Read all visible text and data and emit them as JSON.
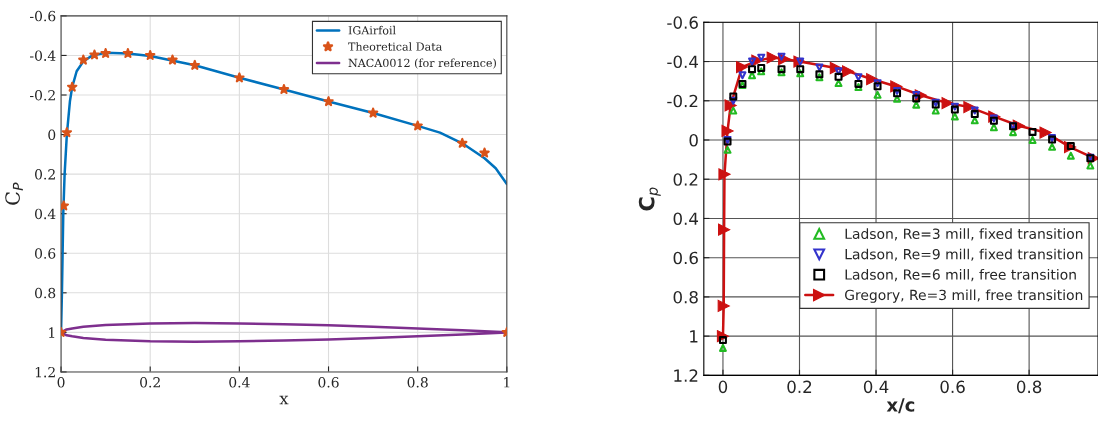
{
  "chart_data": [
    {
      "type": "line",
      "xlabel": "x",
      "ylabel": "C$_{P}$",
      "xlim": [
        0,
        1
      ],
      "ylim": [
        1.2,
        -0.6
      ],
      "xticks": [
        0,
        0.2,
        0.4,
        0.6,
        0.8,
        1
      ],
      "yticks": [
        -0.6,
        -0.4,
        -0.2,
        0,
        0.2,
        0.4,
        0.6,
        0.8,
        1,
        1.2
      ],
      "grid": true,
      "legend": "top right",
      "series": [
        {
          "name": "IGAirfoil",
          "color": "#0072bd",
          "x": [
            0,
            0.001,
            0.002,
            0.005,
            0.008,
            0.013,
            0.02,
            0.025,
            0.035,
            0.05,
            0.07,
            0.1,
            0.15,
            0.2,
            0.3,
            0.4,
            0.5,
            0.6,
            0.7,
            0.8,
            0.85,
            0.9,
            0.95,
            0.975,
            1
          ],
          "values": [
            1,
            0.9,
            0.8,
            0.4,
            0.2,
            0,
            -0.17,
            -0.24,
            -0.32,
            -0.37,
            -0.4,
            -0.413,
            -0.41,
            -0.397,
            -0.35,
            -0.287,
            -0.228,
            -0.167,
            -0.109,
            -0.044,
            -0.01,
            0.044,
            0.12,
            0.17,
            0.25
          ]
        },
        {
          "name": "Theoretical Data",
          "type": "scatter",
          "marker": "star",
          "color": "#d95319",
          "x": [
            0,
            0.006,
            0.013,
            0.025,
            0.05,
            0.075,
            0.1,
            0.15,
            0.2,
            0.25,
            0.3,
            0.4,
            0.5,
            0.6,
            0.7,
            0.8,
            0.9,
            0.95,
            1
          ],
          "values": [
            1,
            0.36,
            -0.01,
            -0.24,
            -0.377,
            -0.403,
            -0.41,
            -0.41,
            -0.4,
            -0.377,
            -0.35,
            -0.287,
            -0.228,
            -0.167,
            -0.109,
            -0.044,
            0.044,
            0.093,
            1
          ]
        },
        {
          "name": "NACA0012 (for reference)",
          "color": "#7e2f8e",
          "x": [
            1,
            0.9,
            0.8,
            0.7,
            0.6,
            0.5,
            0.4,
            0.3,
            0.2,
            0.1,
            0.05,
            0.025,
            0.0125,
            0,
            0.0125,
            0.025,
            0.05,
            0.1,
            0.2,
            0.3,
            0.4,
            0.5,
            0.6,
            0.7,
            0.8,
            0.9,
            1
          ],
          "values": [
            0.999,
            0.989,
            0.98,
            0.971,
            0.964,
            0.959,
            0.955,
            0.953,
            0.955,
            0.963,
            0.972,
            0.98,
            0.985,
            1,
            1.015,
            1.02,
            1.028,
            1.037,
            1.045,
            1.047,
            1.045,
            1.041,
            1.036,
            1.029,
            1.02,
            1.011,
            1.001
          ]
        }
      ]
    },
    {
      "type": "line",
      "xlabel": "x/c",
      "ylabel": "C$_{p}$",
      "xlim": [
        -0.05,
        0.98
      ],
      "ylim": [
        1.2,
        -0.6
      ],
      "xticks": [
        0,
        0.2,
        0.4,
        0.6,
        0.8
      ],
      "yticks": [
        -0.6,
        -0.4,
        -0.2,
        0,
        0.2,
        0.4,
        0.6,
        0.8,
        1,
        1.2
      ],
      "grid": true,
      "legend": "bottom right",
      "series": [
        {
          "name": "Ladson, Re=3 mill, fixed transition",
          "type": "scatter",
          "marker": "triangle",
          "color": "#22bb22",
          "x": [
            0,
            0.012,
            0.027,
            0.051,
            0.076,
            0.1,
            0.153,
            0.202,
            0.252,
            0.302,
            0.354,
            0.404,
            0.455,
            0.505,
            0.556,
            0.606,
            0.658,
            0.708,
            0.758,
            0.809,
            0.86,
            0.909,
            0.96
          ],
          "values": [
            1.06,
            0.05,
            -0.15,
            -0.28,
            -0.33,
            -0.35,
            -0.345,
            -0.34,
            -0.32,
            -0.29,
            -0.27,
            -0.23,
            -0.21,
            -0.18,
            -0.15,
            -0.12,
            -0.1,
            -0.065,
            -0.04,
            0,
            0.035,
            0.08,
            0.13
          ]
        },
        {
          "name": "Ladson, Re=9 mill, fixed transition",
          "type": "scatter",
          "marker": "triangle-down",
          "color": "#3333cc",
          "x": [
            0.012,
            0.027,
            0.051,
            0.076,
            0.1,
            0.153,
            0.202,
            0.252,
            0.302,
            0.354,
            0.404,
            0.455,
            0.505,
            0.556,
            0.606,
            0.658,
            0.708,
            0.758,
            0.86,
            0.96
          ],
          "values": [
            0,
            -0.2,
            -0.33,
            -0.4,
            -0.42,
            -0.425,
            -0.4,
            -0.37,
            -0.35,
            -0.32,
            -0.29,
            -0.25,
            -0.23,
            -0.19,
            -0.17,
            -0.15,
            -0.11,
            -0.07,
            -0.01,
            0.09
          ]
        },
        {
          "name": "Ladson, Re=6 mill, free transition",
          "type": "scatter",
          "marker": "square",
          "color": "#000000",
          "x": [
            0,
            0.012,
            0.027,
            0.051,
            0.076,
            0.1,
            0.153,
            0.202,
            0.252,
            0.302,
            0.354,
            0.404,
            0.455,
            0.505,
            0.556,
            0.606,
            0.658,
            0.708,
            0.758,
            0.809,
            0.86,
            0.909,
            0.96
          ],
          "values": [
            1.02,
            0.008,
            -0.222,
            -0.286,
            -0.361,
            -0.367,
            -0.361,
            -0.361,
            -0.335,
            -0.322,
            -0.286,
            -0.274,
            -0.238,
            -0.212,
            -0.181,
            -0.155,
            -0.132,
            -0.098,
            -0.07,
            -0.041,
            -0.002,
            0.031,
            0.093
          ]
        },
        {
          "name": "Gregory, Re=3 mill, free transition",
          "marker": "triangle-right",
          "color": "#cc1111",
          "x": [
            0,
            0.002,
            0.003,
            0.004,
            0.012,
            0.02,
            0.05,
            0.09,
            0.13,
            0.16,
            0.2,
            0.295,
            0.327,
            0.39,
            0.453,
            0.517,
            0.587,
            0.644,
            0.709,
            0.773,
            0.843,
            0.907,
            0.969
          ],
          "values": [
            1,
            0.846,
            0.457,
            0.175,
            -0.046,
            -0.176,
            -0.372,
            -0.405,
            -0.42,
            -0.413,
            -0.4,
            -0.367,
            -0.35,
            -0.31,
            -0.273,
            -0.228,
            -0.188,
            -0.168,
            -0.119,
            -0.073,
            -0.038,
            0.036,
            0.093
          ]
        }
      ]
    }
  ]
}
